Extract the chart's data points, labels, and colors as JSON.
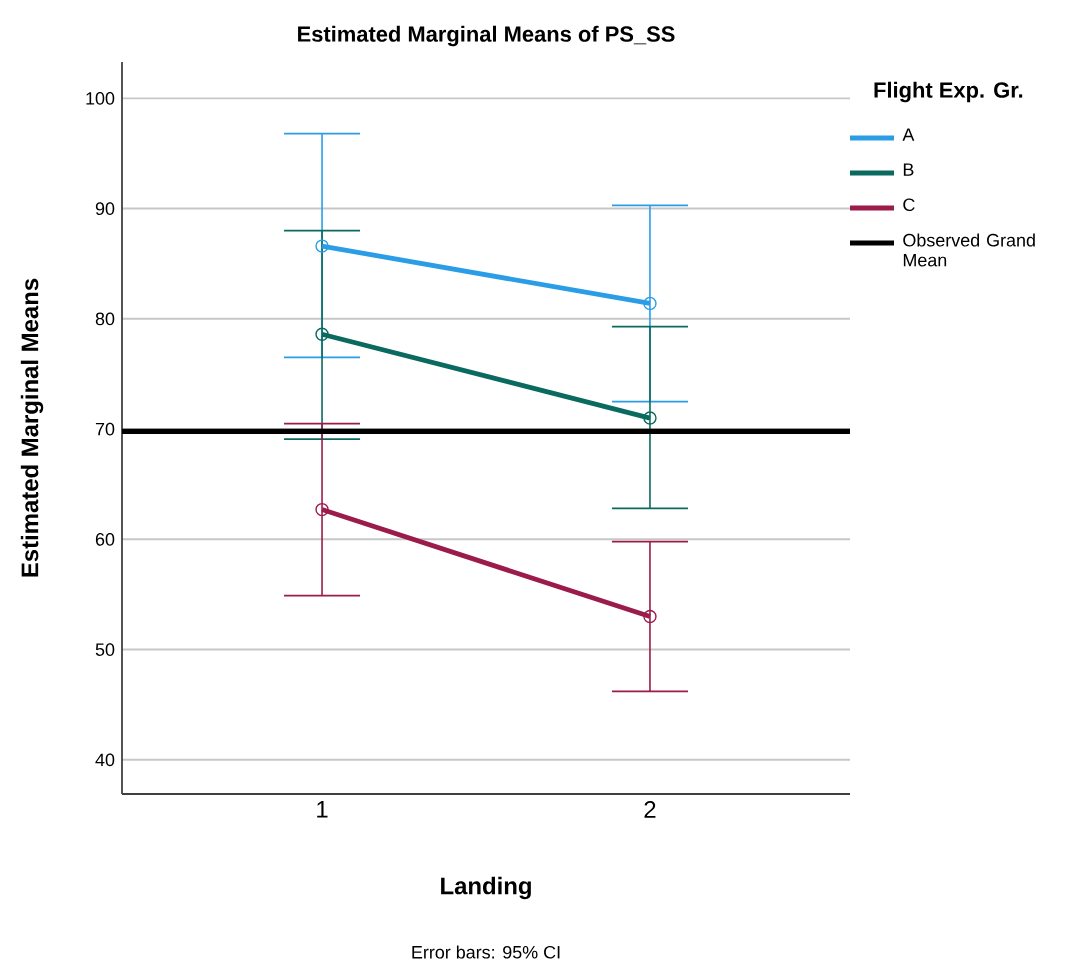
{
  "chart_data": {
    "type": "line",
    "title": "Estimated Marginal Means of PS_SS",
    "xlabel": "Landing",
    "ylabel": "Estimated Marginal Means",
    "legend_title": "Flight Exp. Gr.",
    "categories": [
      "1",
      "2"
    ],
    "series": [
      {
        "name": "A",
        "color": "#2a9de6",
        "values": [
          86.6,
          81.4
        ],
        "errors": [
          [
            76.5,
            96.8
          ],
          [
            72.5,
            90.3
          ]
        ]
      },
      {
        "name": "B",
        "color": "#0b6a5f",
        "values": [
          78.6,
          71.0
        ],
        "errors": [
          [
            69.1,
            88.0
          ],
          [
            62.8,
            79.3
          ]
        ]
      },
      {
        "name": "C",
        "color": "#9b1b4b",
        "values": [
          62.7,
          53.0
        ],
        "errors": [
          [
            54.9,
            70.5
          ],
          [
            46.2,
            59.8
          ]
        ]
      }
    ],
    "ref_lines": [
      {
        "axis": "y",
        "value": 69.8,
        "label": "Observed Grand Mean",
        "color": "#000000"
      }
    ],
    "ylim": [
      36.9,
      103.3
    ],
    "yticks": [
      40,
      50,
      60,
      70,
      80,
      90,
      100
    ],
    "grid": "y",
    "legend": "right",
    "marker": "circle",
    "line_style": "solid",
    "annotations": [
      "Error bars: 95% CI"
    ]
  }
}
